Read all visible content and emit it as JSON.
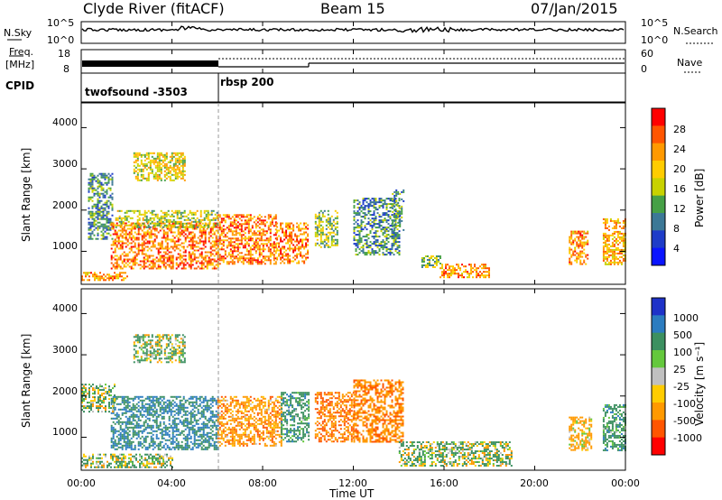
{
  "header": {
    "station": "Clyde River (fitACF)",
    "beam": "Beam 15",
    "date": "07/Jan/2015"
  },
  "top_panel": {
    "nsky_label": "N.Sky",
    "nsky_ticks": [
      "10^5",
      "10^0"
    ],
    "nsearch_label": "N.Search",
    "nsearch_ticks": [
      "10^5",
      "10^0"
    ],
    "freq_label": "Freq.",
    "freq_unit": "[MHz]",
    "freq_ticks": [
      "18",
      "8"
    ],
    "nave_label": "Nave",
    "nave_ticks": [
      "60",
      "0"
    ],
    "cpid_label": "CPID",
    "cpid_segments": [
      "twofsound -3503",
      "rbsp 200"
    ]
  },
  "x_axis": {
    "ticks": [
      "00:00",
      "04:00",
      "08:00",
      "12:00",
      "16:00",
      "20:00",
      "00:00"
    ],
    "label": "Time UT"
  },
  "panels": [
    {
      "ylabel": "Slant Range [km]",
      "yticks": [
        "4000",
        "3000",
        "2000",
        "1000"
      ],
      "colorbar_label": "Power [dB]",
      "colorbar_ticks": [
        "28",
        "24",
        "20",
        "16",
        "12",
        "8",
        "4"
      ],
      "colorbar_colors": [
        "#ff0000",
        "#ff5500",
        "#ff9900",
        "#ffcc00",
        "#c8d200",
        "#46a046",
        "#3c7896",
        "#1e3cc8",
        "#0a14ff"
      ]
    },
    {
      "ylabel": "Slant Range [km]",
      "yticks": [
        "4000",
        "3000",
        "2000",
        "1000"
      ],
      "colorbar_label": "Velocity [m s⁻¹]",
      "colorbar_ticks": [
        "1000",
        "500",
        "100",
        "25",
        "-25",
        "-100",
        "-500",
        "-1000"
      ],
      "colorbar_colors": [
        "#1e32c8",
        "#2b7cc0",
        "#3c9060",
        "#64c83c",
        "#c0c0c0",
        "#ffcc00",
        "#ff9900",
        "#ff5500",
        "#ff0000"
      ]
    }
  ],
  "chart_data": [
    {
      "type": "heatmap",
      "title": "Power",
      "xlabel": "Time UT",
      "ylabel": "Slant Range [km]",
      "xlim": [
        0,
        24
      ],
      "ylim": [
        200,
        4600
      ],
      "colorbar_label": "Power [dB]",
      "colorbar_range": [
        0,
        32
      ],
      "regions": [
        {
          "t": [
            0.3,
            1.4
          ],
          "r": [
            1300,
            2900
          ],
          "level": 10
        },
        {
          "t": [
            1.3,
            6.0
          ],
          "r": [
            600,
            1700
          ],
          "level": 26
        },
        {
          "t": [
            1.5,
            6.0
          ],
          "r": [
            1600,
            2000
          ],
          "level": 16
        },
        {
          "t": [
            2.3,
            4.6
          ],
          "r": [
            2700,
            3400
          ],
          "level": 18
        },
        {
          "t": [
            0.0,
            2.0
          ],
          "r": [
            300,
            500
          ],
          "level": 24
        },
        {
          "t": [
            6.0,
            8.6
          ],
          "r": [
            700,
            1900
          ],
          "level": 26
        },
        {
          "t": [
            8.6,
            10.0
          ],
          "r": [
            700,
            1700
          ],
          "level": 26
        },
        {
          "t": [
            10.3,
            11.3
          ],
          "r": [
            1100,
            2000
          ],
          "level": 14
        },
        {
          "t": [
            12.0,
            14.0
          ],
          "r": [
            900,
            2300
          ],
          "level": 10
        },
        {
          "t": [
            13.7,
            14.2
          ],
          "r": [
            1500,
            2500
          ],
          "level": 10
        },
        {
          "t": [
            15.0,
            15.8
          ],
          "r": [
            600,
            900
          ],
          "level": 14
        },
        {
          "t": [
            15.8,
            18.0
          ],
          "r": [
            350,
            700
          ],
          "level": 24
        },
        {
          "t": [
            21.5,
            22.3
          ],
          "r": [
            700,
            1500
          ],
          "level": 24
        },
        {
          "t": [
            23.0,
            24.0
          ],
          "r": [
            700,
            1800
          ],
          "level": 22
        }
      ]
    },
    {
      "type": "heatmap",
      "title": "Velocity",
      "xlabel": "Time UT",
      "ylabel": "Slant Range [km]",
      "xlim": [
        0,
        24
      ],
      "ylim": [
        200,
        4600
      ],
      "colorbar_label": "Velocity [m s⁻¹]",
      "colorbar_range": [
        -1000,
        1000
      ],
      "regions": [
        {
          "t": [
            1.3,
            6.0
          ],
          "r": [
            700,
            2000
          ],
          "v": 500
        },
        {
          "t": [
            0.0,
            1.5
          ],
          "r": [
            1600,
            2300
          ],
          "v": 100
        },
        {
          "t": [
            2.3,
            4.6
          ],
          "r": [
            2800,
            3500
          ],
          "v": 100
        },
        {
          "t": [
            6.0,
            8.8
          ],
          "r": [
            800,
            2000
          ],
          "v": -300
        },
        {
          "t": [
            8.8,
            10.0
          ],
          "r": [
            900,
            2100
          ],
          "v": 300
        },
        {
          "t": [
            10.3,
            12.0
          ],
          "r": [
            900,
            2100
          ],
          "v": -500
        },
        {
          "t": [
            12.0,
            14.2
          ],
          "r": [
            900,
            2400
          ],
          "v": -400
        },
        {
          "t": [
            0.0,
            4.0
          ],
          "r": [
            250,
            600
          ],
          "v": 100
        },
        {
          "t": [
            14.0,
            19.0
          ],
          "r": [
            300,
            900
          ],
          "v": 100
        },
        {
          "t": [
            21.5,
            22.5
          ],
          "r": [
            700,
            1500
          ],
          "v": -200
        },
        {
          "t": [
            23.0,
            24.0
          ],
          "r": [
            700,
            1800
          ],
          "v": 300
        }
      ]
    }
  ]
}
